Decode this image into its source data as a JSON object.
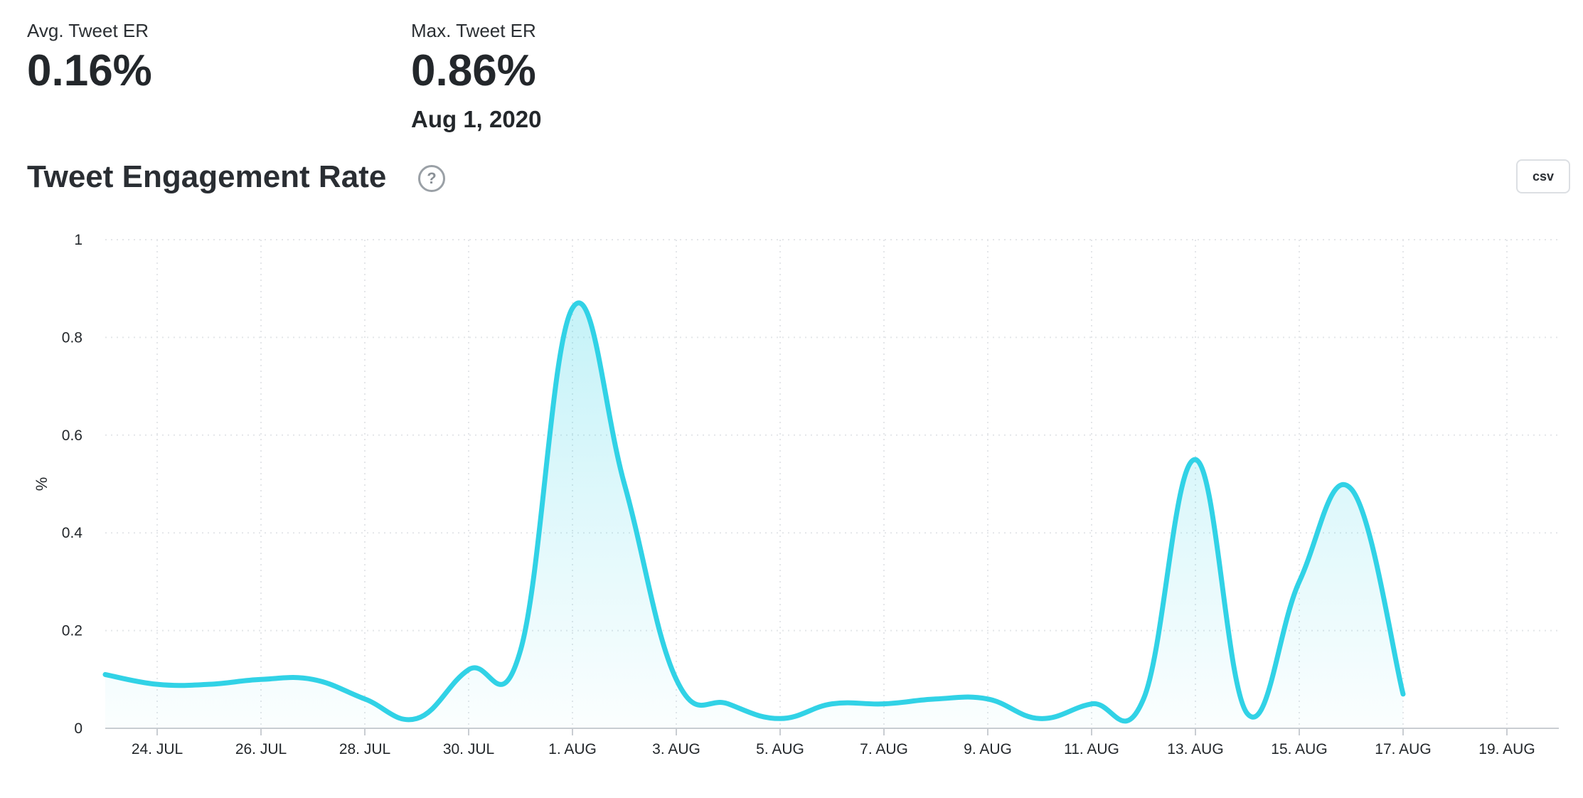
{
  "stats": {
    "avg_label": "Avg. Tweet ER",
    "avg_value": "0.16%",
    "max_label": "Max. Tweet ER",
    "max_value": "0.86%",
    "max_date": "Aug 1, 2020"
  },
  "header": {
    "title": "Tweet Engagement Rate",
    "help_icon": "question-circle-icon",
    "csv_label": "csv"
  },
  "colors": {
    "line": "#31d2e6",
    "fill": "#31d2e6",
    "grid": "#e4e6e9"
  },
  "chart_data": {
    "type": "area",
    "title": "Tweet Engagement Rate",
    "xlabel": "",
    "ylabel": "%",
    "ylim": [
      0,
      1
    ],
    "y_ticks": [
      0,
      0.2,
      0.4,
      0.6,
      0.8,
      1
    ],
    "y_tick_labels": [
      "0",
      "0.2",
      "0.4",
      "0.6",
      "0.8",
      "1"
    ],
    "x_range": [
      "Jul 23",
      "Aug 20"
    ],
    "x_ticks": [
      "Jul 24",
      "Jul 26",
      "Jul 28",
      "Jul 30",
      "Aug 1",
      "Aug 3",
      "Aug 5",
      "Aug 7",
      "Aug 9",
      "Aug 11",
      "Aug 13",
      "Aug 15",
      "Aug 17",
      "Aug 19"
    ],
    "x_tick_labels": [
      "24. JUL",
      "26. JUL",
      "28. JUL",
      "30. JUL",
      "1. AUG",
      "3. AUG",
      "5. AUG",
      "7. AUG",
      "9. AUG",
      "11. AUG",
      "13. AUG",
      "15. AUG",
      "17. AUG",
      "19. AUG"
    ],
    "grid": true,
    "series": [
      {
        "x": [
          "Jul 23",
          "Jul 24",
          "Jul 25",
          "Jul 26",
          "Jul 27",
          "Jul 28",
          "Jul 29",
          "Jul 30",
          "Jul 31",
          "Aug 1",
          "Aug 2",
          "Aug 3",
          "Aug 4",
          "Aug 5",
          "Aug 6",
          "Aug 7",
          "Aug 8",
          "Aug 9",
          "Aug 10",
          "Aug 11",
          "Aug 12",
          "Aug 13",
          "Aug 14",
          "Aug 15",
          "Aug 16",
          "Aug 17"
        ],
        "values": [
          0.11,
          0.09,
          0.09,
          0.1,
          0.1,
          0.06,
          0.02,
          0.12,
          0.16,
          0.86,
          0.5,
          0.1,
          0.05,
          0.02,
          0.05,
          0.05,
          0.06,
          0.06,
          0.02,
          0.05,
          0.06,
          0.55,
          0.03,
          0.3,
          0.49,
          0.07
        ]
      }
    ]
  }
}
